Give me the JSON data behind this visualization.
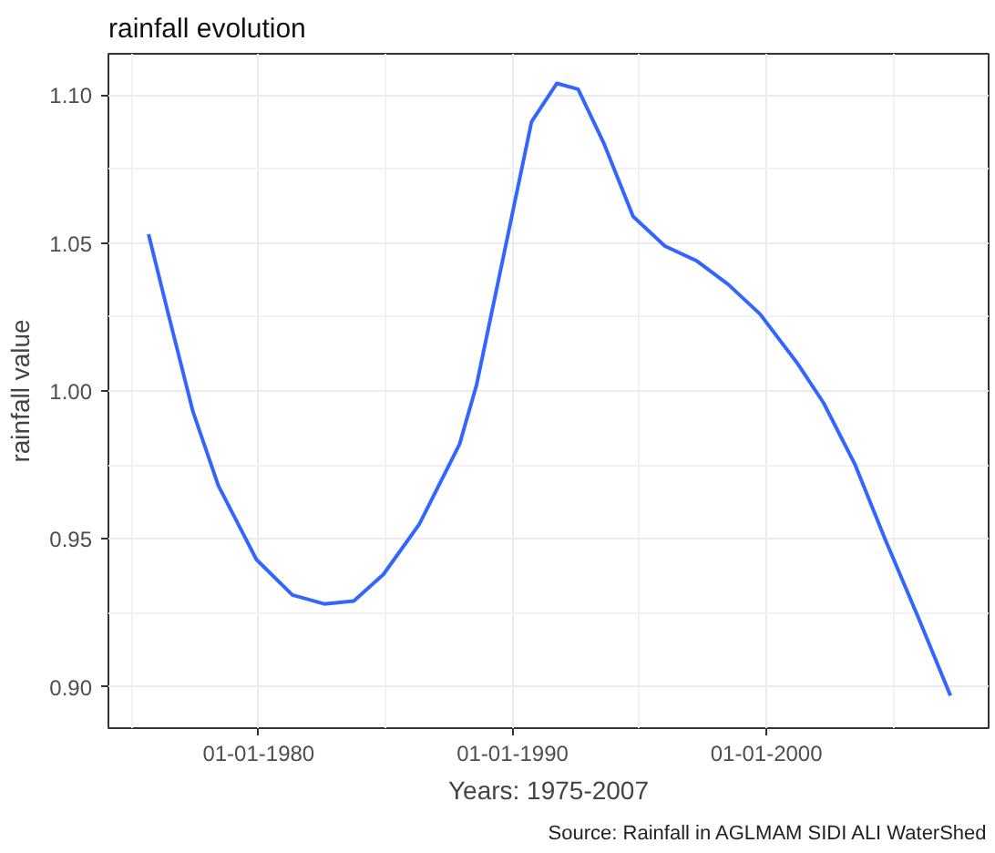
{
  "chart_data": {
    "type": "line",
    "title": "rainfall evolution",
    "xlabel": "Years: 1975-2007",
    "ylabel": "rainfall value",
    "annotations": [
      "Source: Rainfall in AGLMAM SIDI ALI WaterShed"
    ],
    "x": [
      "1975-09",
      "1976-06",
      "1977-06",
      "1978-06",
      "1979-12",
      "1981-05",
      "1982-08",
      "1983-10",
      "1984-12",
      "1986-05",
      "1987-12",
      "1988-08",
      "1989-08",
      "1990-10",
      "1991-10",
      "1992-08",
      "1993-08",
      "1994-10",
      "1996-01",
      "1997-04",
      "1998-07",
      "1999-10",
      "2001-04",
      "2002-04",
      "2003-07",
      "2004-09",
      "2006-01",
      "2007-04"
    ],
    "series": [
      {
        "color": "#3366ff",
        "values": [
          1.053,
          1.027,
          0.993,
          0.968,
          0.943,
          0.931,
          0.928,
          0.929,
          0.938,
          0.955,
          0.982,
          1.002,
          1.043,
          1.091,
          1.104,
          1.102,
          1.084,
          1.059,
          1.049,
          1.044,
          1.036,
          1.026,
          1.009,
          0.996,
          0.975,
          0.95,
          0.923,
          0.897
        ]
      }
    ],
    "xlim": [
      "1974-02",
      "2008-10"
    ],
    "ylim": [
      0.886,
      1.114
    ],
    "xticks": [
      {
        "value": "1980-01-01",
        "label": "01-01-1980"
      },
      {
        "value": "1990-01-01",
        "label": "01-01-1990"
      },
      {
        "value": "2000-01-01",
        "label": "01-01-2000"
      }
    ],
    "yticks": [
      {
        "value": 0.9,
        "label": "0.90"
      },
      {
        "value": 0.95,
        "label": "0.95"
      },
      {
        "value": 1.0,
        "label": "1.00"
      },
      {
        "value": 1.05,
        "label": "1.05"
      },
      {
        "value": 1.1,
        "label": "1.10"
      }
    ],
    "grid": true,
    "line_style": "solid",
    "marker": "none"
  }
}
